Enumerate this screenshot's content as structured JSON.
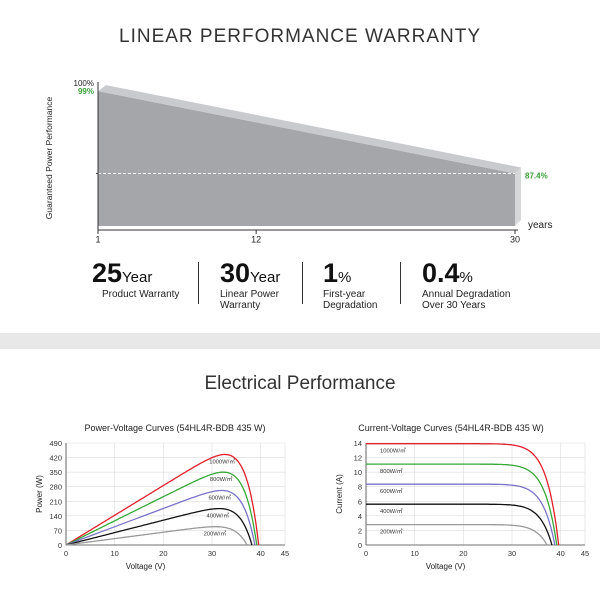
{
  "warranty": {
    "title": "LINEAR PERFORMANCE WARRANTY",
    "chart_data": {
      "type": "area",
      "ylabel": "Guaranteed Power Performance",
      "xlabel": "years",
      "x_ticks": [
        1,
        12,
        30
      ],
      "y_top_label": "100%",
      "start": {
        "year": 1,
        "value": 99,
        "label": "99%"
      },
      "end": {
        "year": 30,
        "value": 87.4,
        "label": "87.4%"
      },
      "xlim": [
        1,
        30
      ],
      "ylim": [
        80,
        100
      ],
      "colors": {
        "area": "#a5a6a9",
        "top": "#c9cacd",
        "accent": "#3aa03a"
      }
    },
    "stats": [
      {
        "big": "25",
        "unit": "Year",
        "label": "Product Warranty"
      },
      {
        "big": "30",
        "unit": "Year",
        "label": "Linear Power Warranty"
      },
      {
        "big": "1",
        "unit": "%",
        "label": "First-year Degradation"
      },
      {
        "big": "0.4",
        "unit": "%",
        "label": "Annual Degradation Over 30 Years"
      }
    ]
  },
  "electrical": {
    "title": "Electrical Performance",
    "chart_data": [
      {
        "type": "line",
        "title": "Power-Voltage Curves (54HL4R-BDB 435 W)",
        "xlabel": "Voltage (V)",
        "ylabel": "Power (W)",
        "xlim": [
          0,
          45
        ],
        "ylim": [
          0,
          490
        ],
        "x_ticks": [
          0,
          10,
          20,
          30,
          40,
          45
        ],
        "y_ticks": [
          0,
          70,
          140,
          210,
          280,
          350,
          420,
          490
        ],
        "series": [
          {
            "name": "1000W/㎡",
            "color": "#e0202a",
            "voc": 39.6,
            "vmp": 32.5,
            "pmax": 435
          },
          {
            "name": "800W/㎡",
            "color": "#36a838",
            "voc": 39.2,
            "vmp": 32.3,
            "pmax": 350
          },
          {
            "name": "600W/㎡",
            "color": "#7a74c8",
            "voc": 38.8,
            "vmp": 32.0,
            "pmax": 262
          },
          {
            "name": "400W/㎡",
            "color": "#111111",
            "voc": 38.2,
            "vmp": 31.6,
            "pmax": 175
          },
          {
            "name": "200W/㎡",
            "color": "#9a9a9a",
            "voc": 37.2,
            "vmp": 31.0,
            "pmax": 88
          }
        ]
      },
      {
        "type": "line",
        "title": "Current-Voltage Curves (54HL4R-BDB 435 W)",
        "xlabel": "Voltage (V)",
        "ylabel": "Current (A)",
        "xlim": [
          0,
          45
        ],
        "ylim": [
          0,
          14
        ],
        "x_ticks": [
          0,
          10,
          20,
          30,
          40,
          45
        ],
        "y_ticks": [
          0,
          2,
          4,
          6,
          8,
          10,
          12,
          14
        ],
        "series": [
          {
            "name": "1000W/㎡",
            "color": "#e0202a",
            "isc": 13.9,
            "voc": 39.6
          },
          {
            "name": "800W/㎡",
            "color": "#36a838",
            "isc": 11.1,
            "voc": 39.2
          },
          {
            "name": "600W/㎡",
            "color": "#7a74c8",
            "isc": 8.35,
            "voc": 38.8
          },
          {
            "name": "400W/㎡",
            "color": "#111111",
            "isc": 5.6,
            "voc": 38.2
          },
          {
            "name": "200W/㎡",
            "color": "#9a9a9a",
            "isc": 2.8,
            "voc": 37.2
          }
        ]
      }
    ]
  }
}
